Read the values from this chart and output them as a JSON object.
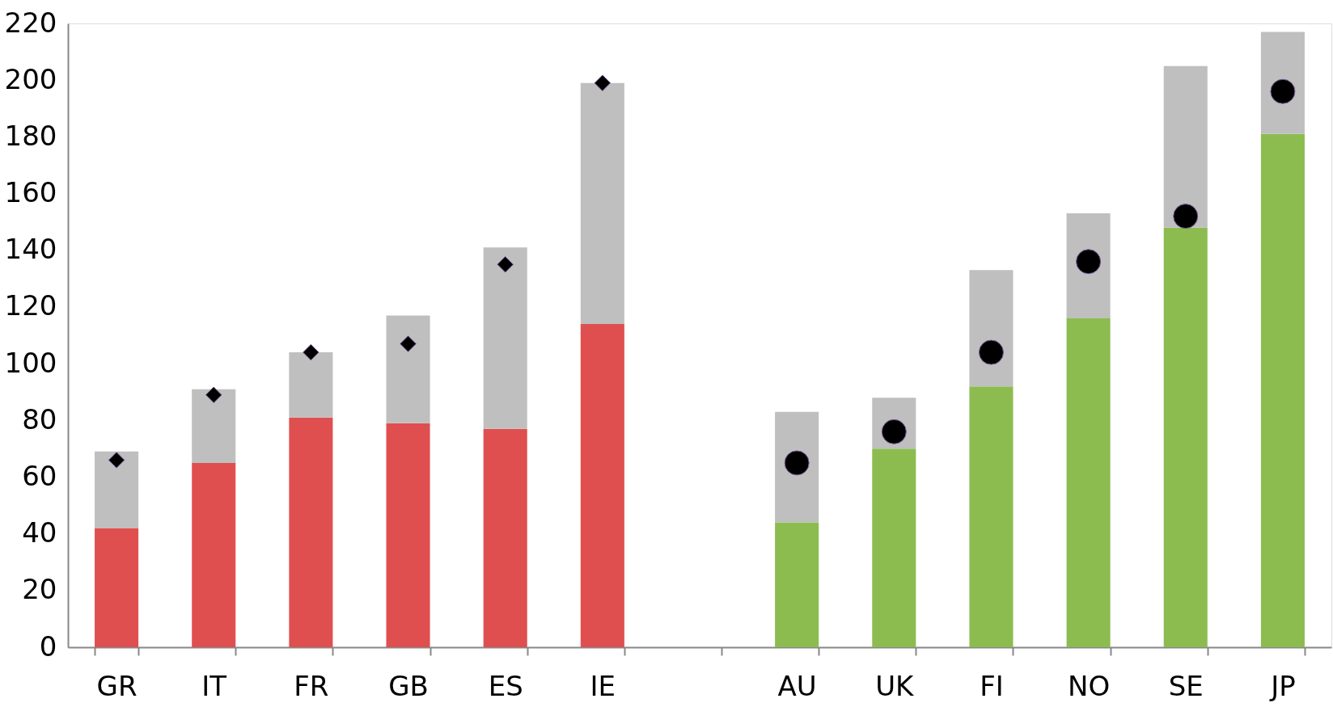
{
  "chart_data": {
    "type": "bar",
    "stacked": true,
    "categories": [
      "GR",
      "IT",
      "FR",
      "GB",
      "ES",
      "IE",
      null,
      "AU",
      "UK",
      "FI",
      "NO",
      "SE",
      "JP"
    ],
    "series": [
      {
        "color": "#e04f4f",
        "values": [
          42,
          65,
          81,
          79,
          77,
          114,
          null,
          null,
          null,
          null,
          null,
          null,
          null
        ]
      },
      {
        "color": "#8cbc4f",
        "values": [
          null,
          null,
          null,
          null,
          null,
          null,
          null,
          44,
          70,
          92,
          116,
          148,
          181
        ]
      },
      {
        "color": "#bfbfbf",
        "values": [
          27,
          26,
          23,
          38,
          64,
          85,
          null,
          39,
          18,
          41,
          37,
          57,
          36
        ]
      },
      {
        "type": "scatter",
        "marker": "diamond",
        "color": "#000000",
        "values": [
          66,
          89,
          104,
          107,
          135,
          199,
          null,
          null,
          null,
          null,
          null,
          null,
          null
        ]
      },
      {
        "type": "scatter",
        "marker": "circle",
        "color": "#000000",
        "values": [
          null,
          null,
          null,
          null,
          null,
          null,
          null,
          65,
          76,
          104,
          136,
          152,
          196
        ]
      }
    ],
    "ylim": [
      0,
      220
    ],
    "yticks": [
      0,
      20,
      40,
      60,
      80,
      100,
      120,
      140,
      160,
      180,
      200,
      220
    ],
    "grid": false,
    "legend": false
  }
}
